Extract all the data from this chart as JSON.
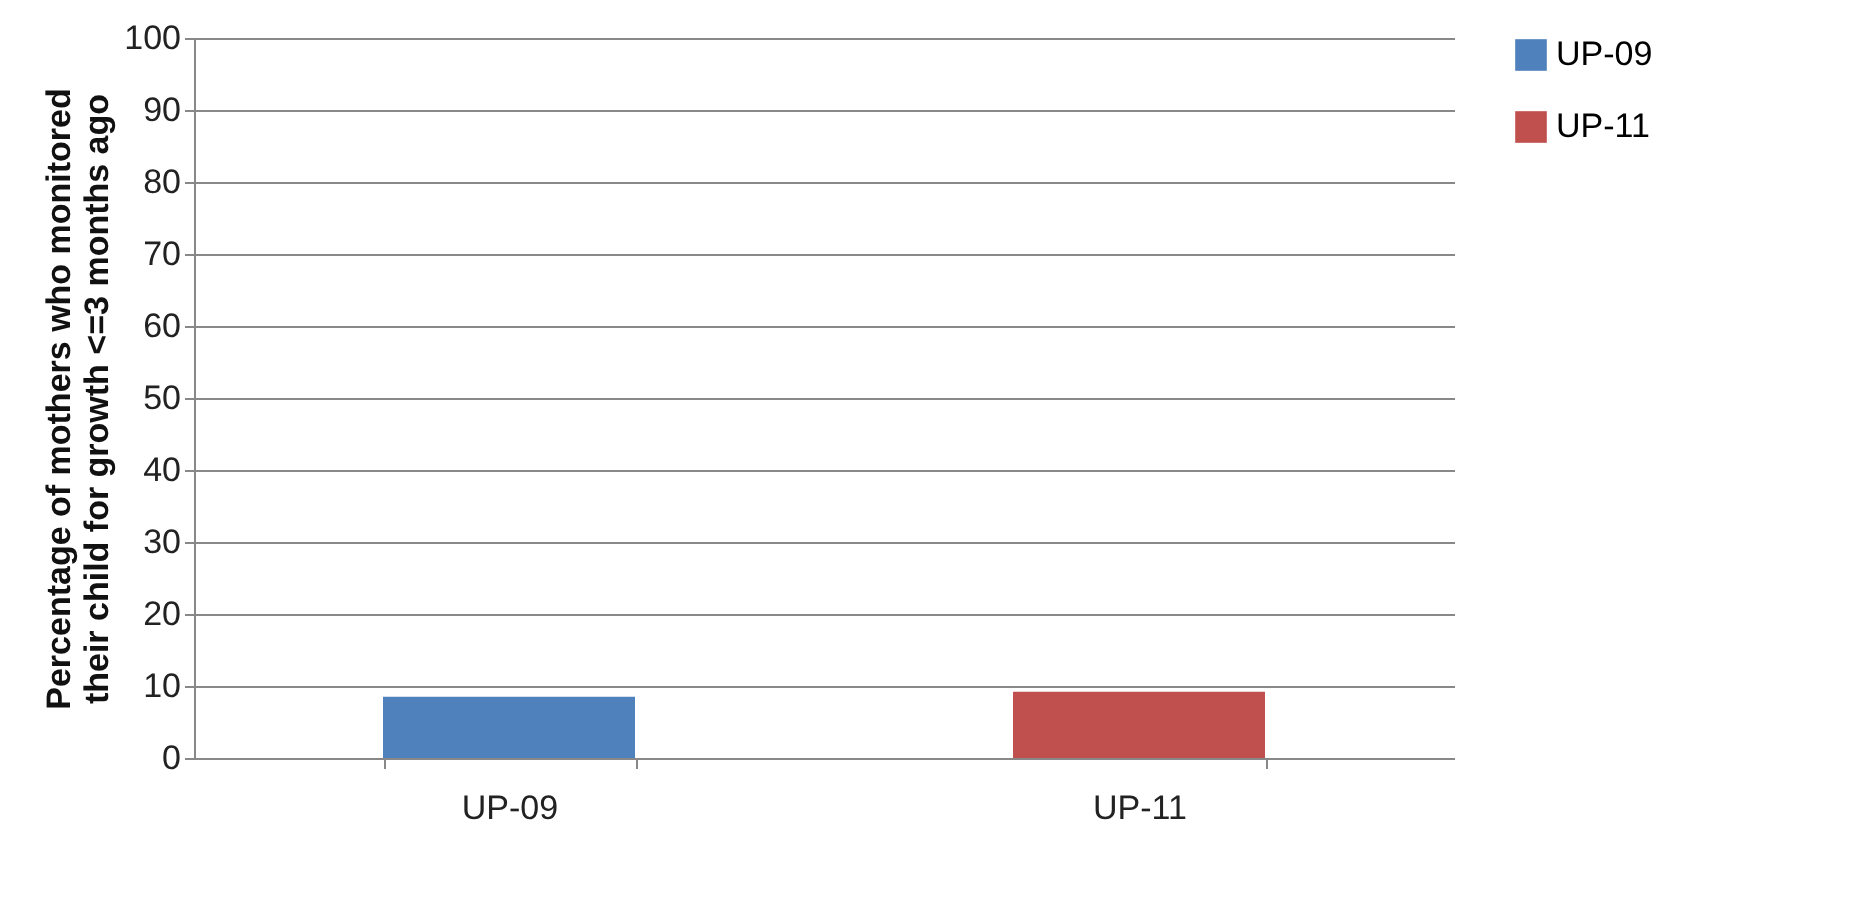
{
  "chart_data": {
    "type": "bar",
    "ylabel": "Percentage of mothers who monitored their child for growth <=3 months ago",
    "categories": [
      "UP-09",
      "UP-11"
    ],
    "series": [
      {
        "name": "UP-09",
        "color": "#4f81bd",
        "values": [
          8.5,
          null
        ]
      },
      {
        "name": "UP-11",
        "color": "#c0504d",
        "values": [
          null,
          9.2
        ]
      }
    ],
    "ylim": [
      0,
      100
    ],
    "yticks": [
      0,
      10,
      20,
      30,
      40,
      50,
      60,
      70,
      80,
      90,
      100
    ],
    "grid": "y",
    "legend": "right"
  }
}
